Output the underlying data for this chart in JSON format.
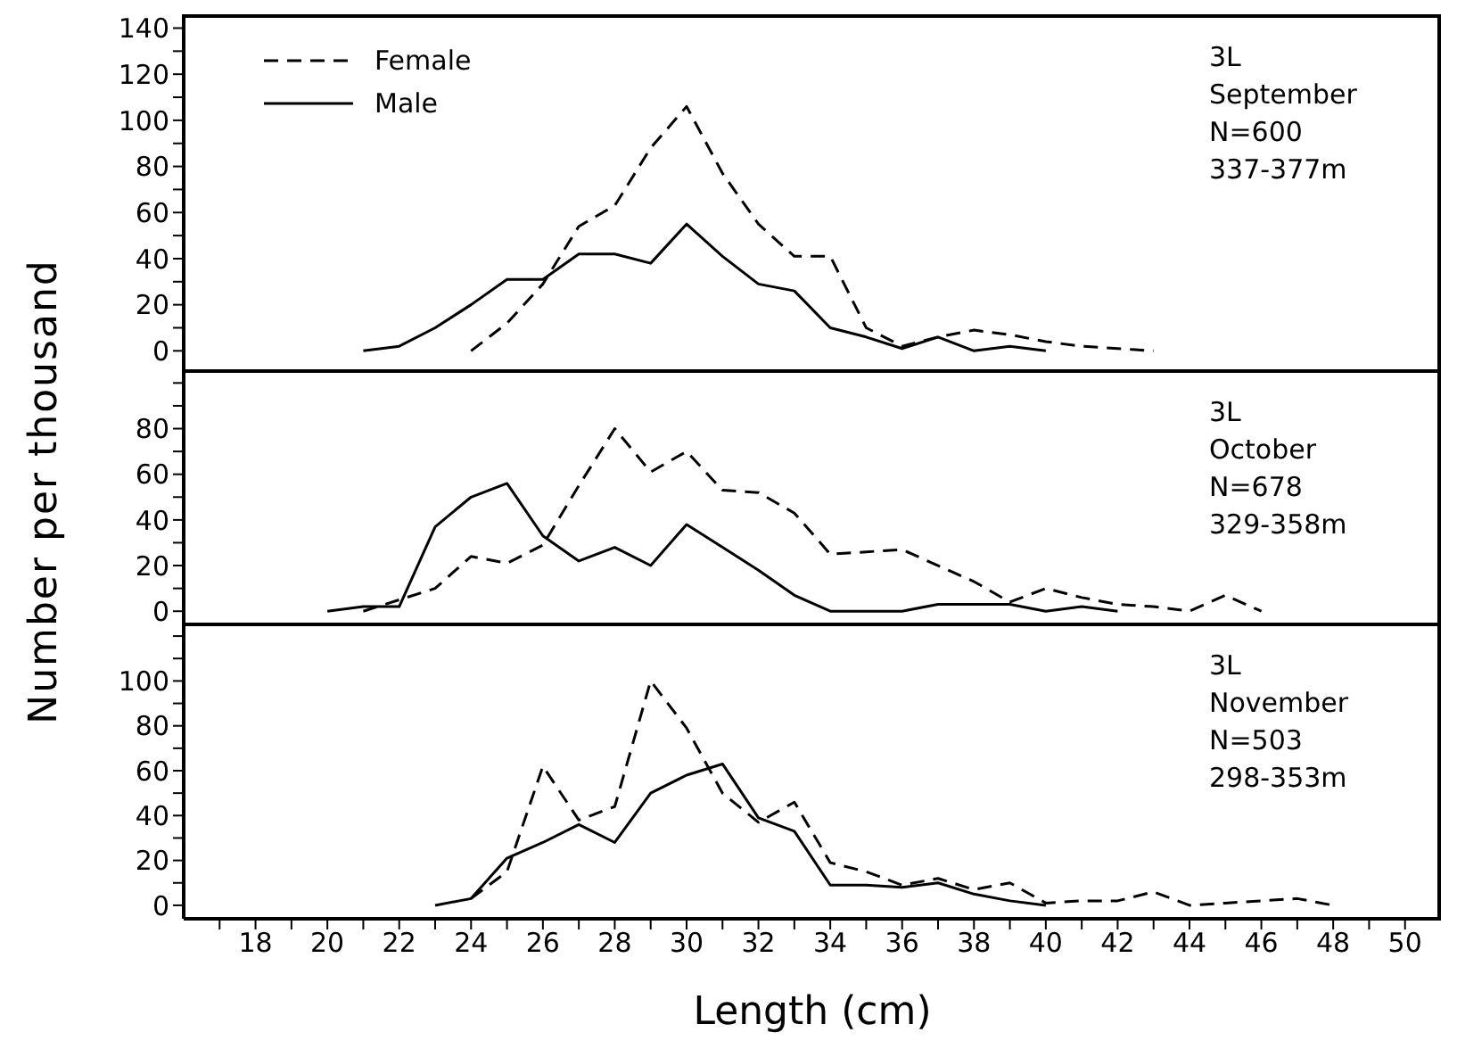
{
  "chart_data": [
    {
      "type": "line",
      "xlim": [
        16,
        51
      ],
      "ylim": [
        -8,
        146
      ],
      "tick_labels": "y",
      "legend": "top left",
      "yticks": [
        0,
        {
          "value": 10,
          "label": null
        },
        20,
        {
          "value": 30,
          "label": null
        },
        40,
        {
          "value": 50,
          "label": null
        },
        60,
        {
          "value": 70,
          "label": null
        },
        80,
        {
          "value": 90,
          "label": null
        },
        100,
        {
          "value": 110,
          "label": null
        },
        120,
        {
          "value": 130,
          "label": null
        },
        140
      ],
      "x": [
        21,
        22,
        23,
        24,
        25,
        26,
        27,
        28,
        29,
        30,
        31,
        32,
        33,
        34,
        35,
        36,
        37,
        38,
        39,
        40,
        41,
        42,
        43
      ],
      "series": [
        {
          "name": "Female",
          "color": "#000000",
          "line_style": "dashed",
          "values": [
            null,
            null,
            null,
            0,
            12,
            29,
            54,
            63,
            88,
            106,
            77,
            55,
            41,
            41,
            10,
            2,
            6,
            9,
            7,
            4,
            2,
            1,
            0
          ]
        },
        {
          "name": "Male",
          "color": "#000000",
          "line_style": "solid",
          "values": [
            0,
            2,
            10,
            20,
            31,
            31,
            42,
            42,
            38,
            55,
            41,
            29,
            26,
            10,
            6,
            1,
            6,
            0,
            2,
            0,
            null,
            null,
            null
          ]
        }
      ],
      "annotations": [
        "3L",
        "September",
        "N=600",
        "337-377m"
      ]
    },
    {
      "type": "line",
      "xlim": [
        16,
        51
      ],
      "ylim": [
        -5,
        106
      ],
      "tick_labels": "y",
      "ylabel": "Number per thousand",
      "yticks": [
        0,
        {
          "value": 10,
          "label": null
        },
        20,
        {
          "value": 30,
          "label": null
        },
        40,
        {
          "value": 50,
          "label": null
        },
        60,
        {
          "value": 70,
          "label": null
        },
        80,
        {
          "value": 90,
          "label": null
        },
        {
          "value": 100,
          "label": null
        }
      ],
      "x": [
        20,
        21,
        22,
        23,
        24,
        25,
        26,
        27,
        28,
        29,
        30,
        31,
        32,
        33,
        34,
        35,
        36,
        37,
        38,
        39,
        40,
        41,
        42,
        43,
        44,
        45,
        46
      ],
      "series": [
        {
          "color": "#000000",
          "line_style": "dashed",
          "values": [
            null,
            0,
            5,
            10,
            24,
            21,
            29,
            55,
            80,
            61,
            70,
            53,
            52,
            43,
            25,
            26,
            27,
            20,
            13,
            4,
            10,
            6,
            3,
            2,
            0,
            7,
            0
          ]
        },
        {
          "color": "#000000",
          "line_style": "solid",
          "values": [
            0,
            2,
            2,
            37,
            50,
            56,
            33,
            22,
            28,
            20,
            38,
            28,
            18,
            7,
            0,
            0,
            0,
            3,
            3,
            3,
            0,
            2,
            0,
            null,
            null,
            null,
            null
          ]
        }
      ],
      "annotations": [
        "3L",
        "October",
        "N=678",
        "329-358m"
      ]
    },
    {
      "type": "line",
      "xlim": [
        16,
        51
      ],
      "ylim": [
        -6,
        126
      ],
      "xlabel": "Length (cm)",
      "xticks": [
        {
          "value": 17,
          "label": null
        },
        18,
        {
          "value": 19,
          "label": null
        },
        20,
        {
          "value": 21,
          "label": null
        },
        22,
        {
          "value": 23,
          "label": null
        },
        24,
        {
          "value": 25,
          "label": null
        },
        26,
        {
          "value": 27,
          "label": null
        },
        28,
        {
          "value": 29,
          "label": null
        },
        30,
        {
          "value": 31,
          "label": null
        },
        32,
        {
          "value": 33,
          "label": null
        },
        34,
        {
          "value": 35,
          "label": null
        },
        36,
        {
          "value": 37,
          "label": null
        },
        38,
        {
          "value": 39,
          "label": null
        },
        40,
        {
          "value": 41,
          "label": null
        },
        42,
        {
          "value": 43,
          "label": null
        },
        44,
        {
          "value": 45,
          "label": null
        },
        46,
        {
          "value": 47,
          "label": null
        },
        48,
        {
          "value": 49,
          "label": null
        },
        50
      ],
      "yticks": [
        0,
        {
          "value": 10,
          "label": null
        },
        20,
        {
          "value": 30,
          "label": null
        },
        40,
        {
          "value": 50,
          "label": null
        },
        60,
        {
          "value": 70,
          "label": null
        },
        80,
        {
          "value": 90,
          "label": null
        },
        100,
        {
          "value": 110,
          "label": null
        },
        {
          "value": 120,
          "label": null
        }
      ],
      "x": [
        23,
        24,
        25,
        26,
        27,
        28,
        29,
        30,
        31,
        32,
        33,
        34,
        35,
        36,
        37,
        38,
        39,
        40,
        41,
        42,
        43,
        44,
        45,
        46,
        47,
        48
      ],
      "series": [
        {
          "color": "#000000",
          "line_style": "dashed",
          "values": [
            null,
            3,
            15,
            62,
            38,
            44,
            100,
            79,
            50,
            37,
            46,
            19,
            15,
            9,
            12,
            7,
            10,
            1,
            2,
            2,
            6,
            0,
            1,
            2,
            3,
            0
          ]
        },
        {
          "color": "#000000",
          "line_style": "solid",
          "values": [
            0,
            3,
            21,
            28,
            36,
            28,
            50,
            58,
            63,
            39,
            33,
            9,
            9,
            8,
            10,
            5,
            2,
            0,
            null,
            null,
            null,
            null,
            null,
            null,
            null,
            null
          ]
        }
      ],
      "annotations": [
        "3L",
        "November",
        "N=503",
        "298-353m"
      ]
    }
  ]
}
